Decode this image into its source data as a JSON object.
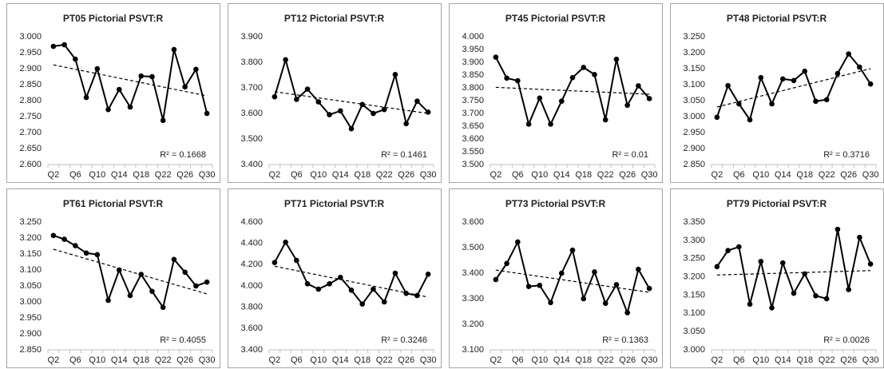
{
  "chart_data": [
    {
      "type": "line",
      "title": "PT05 Pictorial PSVT:R",
      "annotation": "R² = 0.1668",
      "categories": [
        "Q2",
        null,
        "Q6",
        null,
        "Q10",
        null,
        "Q14",
        null,
        "Q18",
        null,
        "Q22",
        null,
        "Q26",
        null,
        "Q30"
      ],
      "values": [
        2.97,
        2.975,
        2.93,
        2.81,
        2.9,
        2.772,
        2.835,
        2.78,
        2.877,
        2.875,
        2.738,
        2.96,
        2.843,
        2.898,
        2.76
      ],
      "trend": [
        2.912,
        2.815
      ],
      "color": "#000000",
      "grid": false,
      "ylim": [
        2.6,
        3.0
      ],
      "yticks": [
        {
          "value": 2.6,
          "label": "2.600"
        },
        {
          "value": 2.65,
          "label": "2.650"
        },
        {
          "value": 2.7,
          "label": "2.700"
        },
        {
          "value": 2.75,
          "label": "2.750"
        },
        {
          "value": 2.8,
          "label": "2.800"
        },
        {
          "value": 2.85,
          "label": "2.850"
        },
        {
          "value": 2.9,
          "label": "2.900"
        },
        {
          "value": 2.95,
          "label": "2.950"
        },
        {
          "value": 3.0,
          "label": "3.000"
        }
      ]
    },
    {
      "type": "line",
      "title": "PT12 Pictorial PSVT:R",
      "annotation": "R² = 0.1461",
      "categories": [
        "Q2",
        null,
        "Q6",
        null,
        "Q10",
        null,
        "Q14",
        null,
        "Q18",
        null,
        "Q22",
        null,
        "Q26",
        null,
        "Q30"
      ],
      "values": [
        3.665,
        3.81,
        3.655,
        3.695,
        3.645,
        3.595,
        3.61,
        3.54,
        3.635,
        3.6,
        3.615,
        3.752,
        3.56,
        3.648,
        3.605
      ],
      "trend": [
        3.685,
        3.6
      ],
      "color": "#000000",
      "grid": false,
      "ylim": [
        3.4,
        3.9
      ],
      "yticks": [
        {
          "value": 3.4,
          "label": "3.400"
        },
        {
          "value": 3.5,
          "label": "3.500"
        },
        {
          "value": 3.6,
          "label": "3.600"
        },
        {
          "value": 3.7,
          "label": "3.700"
        },
        {
          "value": 3.8,
          "label": "3.800"
        },
        {
          "value": 3.9,
          "label": "3.900"
        }
      ]
    },
    {
      "type": "line",
      "title": "PT45 Pictorial PSVT:R",
      "annotation": "R² = 0.01",
      "categories": [
        "Q2",
        null,
        "Q6",
        null,
        "Q10",
        null,
        "Q14",
        null,
        "Q18",
        null,
        "Q22",
        null,
        "Q26",
        null,
        "Q30"
      ],
      "values": [
        3.92,
        3.838,
        3.828,
        3.658,
        3.76,
        3.658,
        3.748,
        3.84,
        3.88,
        3.852,
        3.675,
        3.912,
        3.732,
        3.808,
        3.758
      ],
      "trend": [
        3.802,
        3.775
      ],
      "color": "#000000",
      "grid": false,
      "ylim": [
        3.5,
        4.0
      ],
      "yticks": [
        {
          "value": 3.5,
          "label": "3.500"
        },
        {
          "value": 3.55,
          "label": "3.550"
        },
        {
          "value": 3.6,
          "label": "3.600"
        },
        {
          "value": 3.65,
          "label": "3.650"
        },
        {
          "value": 3.7,
          "label": "3.700"
        },
        {
          "value": 3.75,
          "label": "3.750"
        },
        {
          "value": 3.8,
          "label": "3.800"
        },
        {
          "value": 3.85,
          "label": "3.850"
        },
        {
          "value": 3.9,
          "label": "3.900"
        },
        {
          "value": 3.95,
          "label": "3.950"
        },
        {
          "value": 4.0,
          "label": "4.000"
        }
      ]
    },
    {
      "type": "line",
      "title": "PT48 Pictorial PSVT:R",
      "annotation": "R² = 0.3716",
      "categories": [
        "Q2",
        null,
        "Q6",
        null,
        "Q10",
        null,
        "Q14",
        null,
        "Q18",
        null,
        "Q22",
        null,
        "Q26",
        null,
        "Q30"
      ],
      "values": [
        2.998,
        3.097,
        3.04,
        2.99,
        3.122,
        3.04,
        3.118,
        3.113,
        3.142,
        3.048,
        3.053,
        3.135,
        3.196,
        3.155,
        3.102
      ],
      "trend": [
        3.03,
        3.15
      ],
      "color": "#000000",
      "grid": false,
      "ylim": [
        2.85,
        3.25
      ],
      "yticks": [
        {
          "value": 2.85,
          "label": "2.850"
        },
        {
          "value": 2.9,
          "label": "2.900"
        },
        {
          "value": 2.95,
          "label": "2.950"
        },
        {
          "value": 3.0,
          "label": "3.000"
        },
        {
          "value": 3.05,
          "label": "3.050"
        },
        {
          "value": 3.1,
          "label": "3.100"
        },
        {
          "value": 3.15,
          "label": "3.150"
        },
        {
          "value": 3.2,
          "label": "3.200"
        },
        {
          "value": 3.25,
          "label": "3.250"
        }
      ]
    },
    {
      "type": "line",
      "title": "PT61 Pictorial PSVT:R",
      "annotation": "R² = 0.4055",
      "categories": [
        "Q2",
        null,
        "Q6",
        null,
        "Q10",
        null,
        "Q14",
        null,
        "Q18",
        null,
        "Q22",
        null,
        "Q26",
        null,
        "Q30"
      ],
      "values": [
        3.208,
        3.196,
        3.176,
        3.153,
        3.148,
        3.005,
        3.1,
        3.02,
        3.086,
        3.033,
        2.983,
        3.133,
        3.093,
        3.05,
        3.062
      ],
      "trend": [
        3.165,
        3.025
      ],
      "color": "#000000",
      "grid": false,
      "ylim": [
        2.85,
        3.25
      ],
      "yticks": [
        {
          "value": 2.85,
          "label": "2.850"
        },
        {
          "value": 2.9,
          "label": "2.900"
        },
        {
          "value": 2.95,
          "label": "2.950"
        },
        {
          "value": 3.0,
          "label": "3.000"
        },
        {
          "value": 3.05,
          "label": "3.050"
        },
        {
          "value": 3.1,
          "label": "3.100"
        },
        {
          "value": 3.15,
          "label": "3.150"
        },
        {
          "value": 3.2,
          "label": "3.200"
        },
        {
          "value": 3.25,
          "label": "3.250"
        }
      ]
    },
    {
      "type": "line",
      "title": "PT71 Pictorial PSVT:R",
      "annotation": "R² = 0.3246",
      "categories": [
        "Q2",
        null,
        "Q6",
        null,
        "Q10",
        null,
        "Q14",
        null,
        "Q18",
        null,
        "Q22",
        null,
        "Q26",
        null,
        "Q30"
      ],
      "values": [
        4.22,
        4.41,
        4.24,
        4.02,
        3.97,
        4.02,
        4.08,
        3.96,
        3.83,
        3.97,
        3.85,
        4.12,
        3.93,
        3.91,
        4.11
      ],
      "trend": [
        4.185,
        3.895
      ],
      "color": "#000000",
      "grid": false,
      "ylim": [
        3.4,
        4.6
      ],
      "yticks": [
        {
          "value": 3.4,
          "label": "3.400"
        },
        {
          "value": 3.6,
          "label": "3.600"
        },
        {
          "value": 3.8,
          "label": "3.800"
        },
        {
          "value": 4.0,
          "label": "4.000"
        },
        {
          "value": 4.2,
          "label": "4.200"
        },
        {
          "value": 4.4,
          "label": "4.400"
        },
        {
          "value": 4.6,
          "label": "4.600"
        }
      ]
    },
    {
      "type": "line",
      "title": "PT73 Pictorial PSVT:R",
      "annotation": "R² = 0.1363",
      "categories": [
        "Q2",
        null,
        "Q6",
        null,
        "Q10",
        null,
        "Q14",
        null,
        "Q18",
        null,
        "Q22",
        null,
        "Q26",
        null,
        "Q30"
      ],
      "values": [
        3.375,
        3.438,
        3.522,
        3.348,
        3.352,
        3.285,
        3.4,
        3.49,
        3.3,
        3.405,
        3.282,
        3.355,
        3.245,
        3.415,
        3.34
      ],
      "trend": [
        3.412,
        3.325
      ],
      "color": "#000000",
      "grid": false,
      "ylim": [
        3.1,
        3.6
      ],
      "yticks": [
        {
          "value": 3.1,
          "label": "3.100"
        },
        {
          "value": 3.2,
          "label": "3.200"
        },
        {
          "value": 3.3,
          "label": "3.300"
        },
        {
          "value": 3.4,
          "label": "3.400"
        },
        {
          "value": 3.5,
          "label": "3.500"
        },
        {
          "value": 3.6,
          "label": "3.600"
        }
      ]
    },
    {
      "type": "line",
      "title": "PT79 Pictorial PSVT:R",
      "annotation": "R² = 0.0026",
      "categories": [
        "Q2",
        null,
        "Q6",
        null,
        "Q10",
        null,
        "Q14",
        null,
        "Q18",
        null,
        "Q22",
        null,
        "Q26",
        null,
        "Q30"
      ],
      "values": [
        3.228,
        3.272,
        3.282,
        3.125,
        3.242,
        3.115,
        3.238,
        3.155,
        3.208,
        3.148,
        3.14,
        3.33,
        3.165,
        3.308,
        3.235
      ],
      "trend": [
        3.205,
        3.217
      ],
      "color": "#000000",
      "grid": false,
      "ylim": [
        3.0,
        3.35
      ],
      "yticks": [
        {
          "value": 3.0,
          "label": "3.000"
        },
        {
          "value": 3.05,
          "label": "3.050"
        },
        {
          "value": 3.1,
          "label": "3.100"
        },
        {
          "value": 3.15,
          "label": "3.150"
        },
        {
          "value": 3.2,
          "label": "3.200"
        },
        {
          "value": 3.25,
          "label": "3.250"
        },
        {
          "value": 3.3,
          "label": "3.300"
        },
        {
          "value": 3.35,
          "label": "3.350"
        }
      ]
    }
  ]
}
